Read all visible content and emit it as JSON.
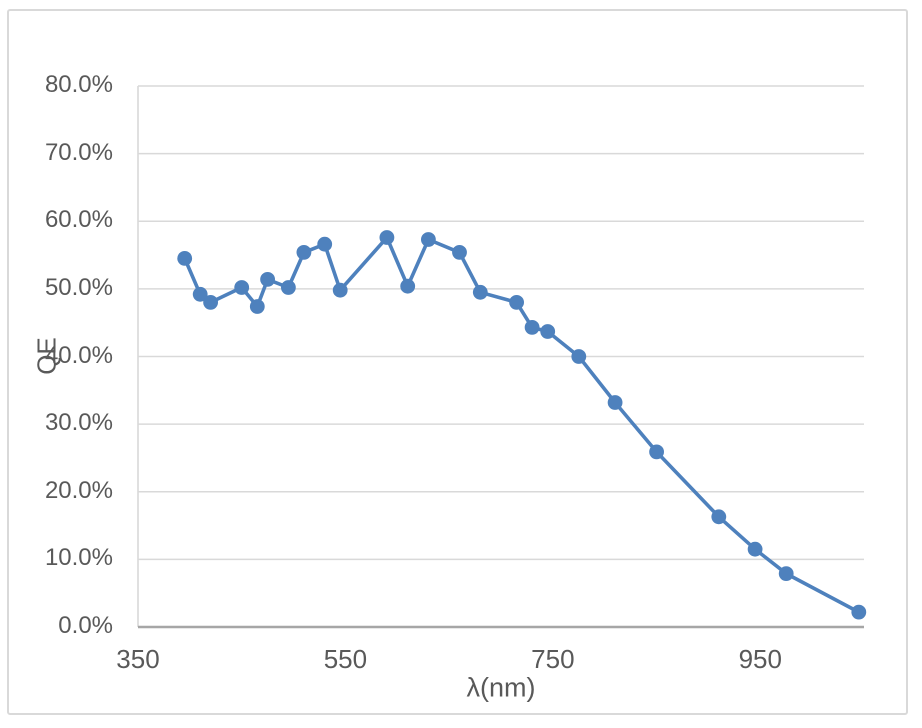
{
  "chart_data": {
    "type": "line",
    "title": "",
    "xlabel": "λ(nm)",
    "ylabel": "QE",
    "legend": "none",
    "grid": "horizontal",
    "x_axis": {
      "min": 350,
      "max": 1050,
      "tick_values": [
        350,
        550,
        750,
        950
      ],
      "tick_labels": [
        "350",
        "550",
        "750",
        "950"
      ]
    },
    "y_axis": {
      "min": 0,
      "max": 80,
      "major_unit": 10,
      "tick_values": [
        0,
        10,
        20,
        30,
        40,
        50,
        60,
        70,
        80
      ],
      "tick_labels": [
        "0.0%",
        "10.0%",
        "20.0%",
        "30.0%",
        "40.0%",
        "50.0%",
        "60.0%",
        "70.0%",
        "80.0%"
      ]
    },
    "series": [
      {
        "name": "QE",
        "marker": "circle",
        "color": "#4E81BD",
        "x": [
          395,
          410,
          420,
          450,
          465,
          475,
          495,
          510,
          530,
          545,
          590,
          610,
          630,
          660,
          680,
          715,
          730,
          745,
          775,
          810,
          850,
          910,
          945,
          975,
          1045
        ],
        "y_percent": [
          54.5,
          49.2,
          48.0,
          50.2,
          47.4,
          51.4,
          50.2,
          55.4,
          56.6,
          49.8,
          57.6,
          50.4,
          57.3,
          55.4,
          49.5,
          48.0,
          44.3,
          43.7,
          40.0,
          33.2,
          25.9,
          16.3,
          11.5,
          7.9,
          2.2
        ]
      }
    ]
  },
  "colors": {
    "line": "#4E81BD",
    "gridline": "#D9D9D9",
    "value_axis_line": "#D9D9D9",
    "category_axis_line": "#A6A6A6",
    "label_text": "#595959",
    "chart_border": "#D9D9D9",
    "background": "#FFFFFF"
  }
}
